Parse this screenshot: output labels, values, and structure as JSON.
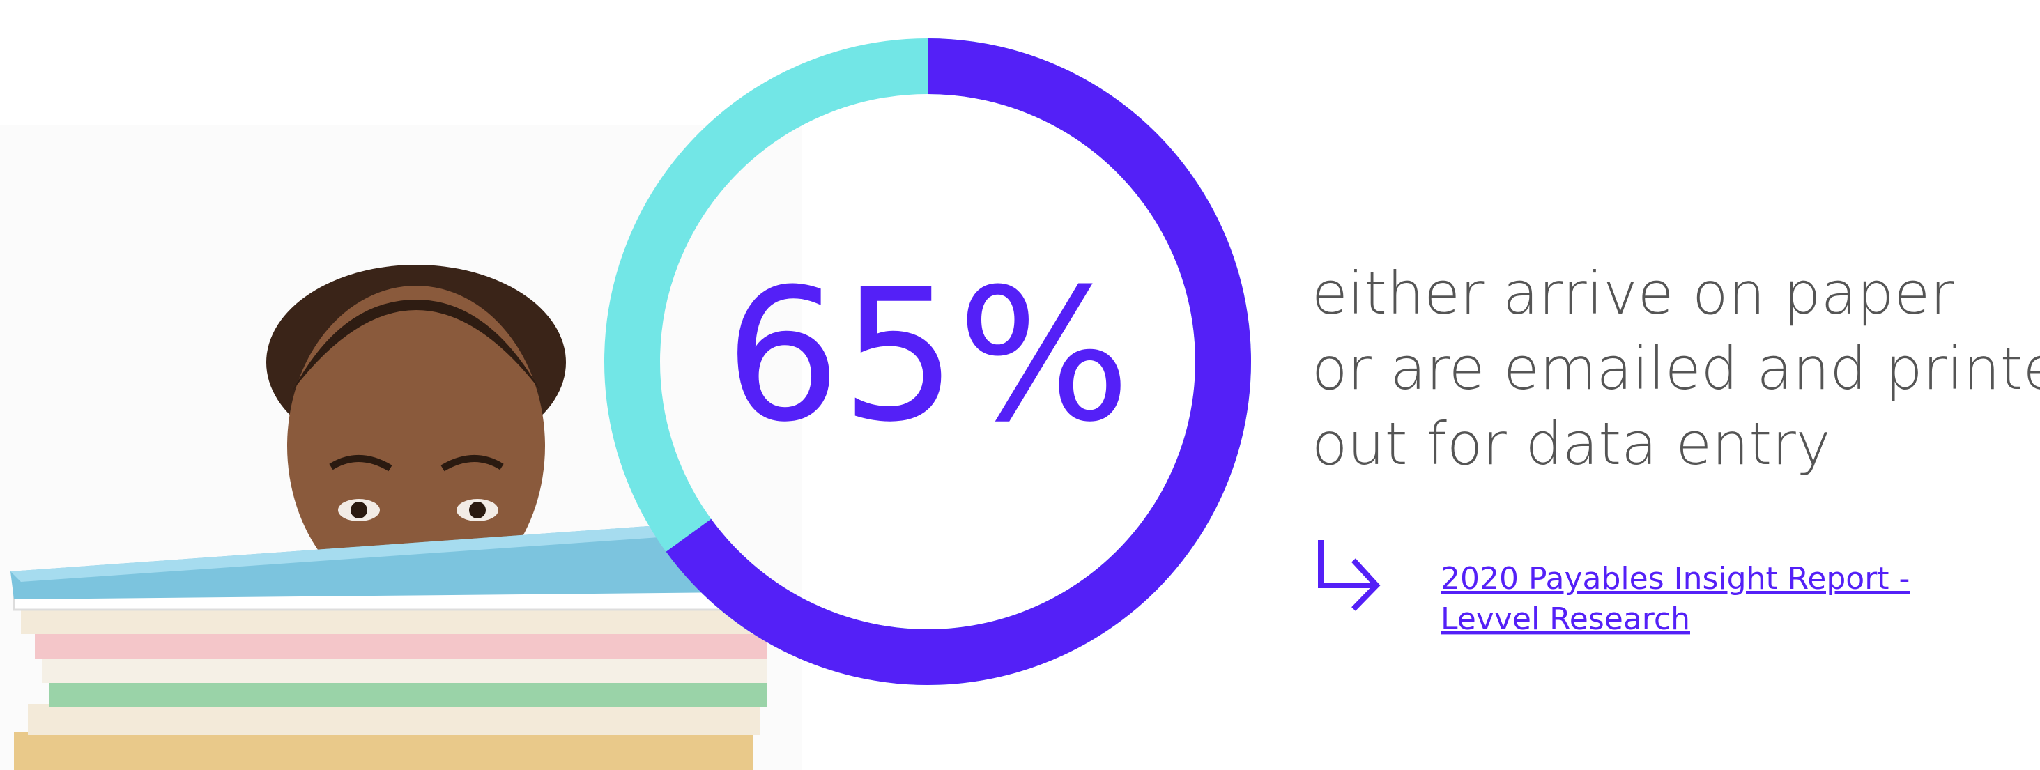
{
  "chart_data": {
    "type": "donut",
    "values": [
      65
    ],
    "value_labels": [
      "65%"
    ],
    "ylim": [
      0,
      100
    ],
    "color": "#5420f7",
    "track_color": "#72e6e6"
  },
  "statement": {
    "lines": [
      "either arrive on paper",
      "or are emailed and printed",
      "out for data entry"
    ]
  },
  "source_link": {
    "lines": [
      "2020 Payables Insight Report -",
      "Levvel Research"
    ]
  }
}
